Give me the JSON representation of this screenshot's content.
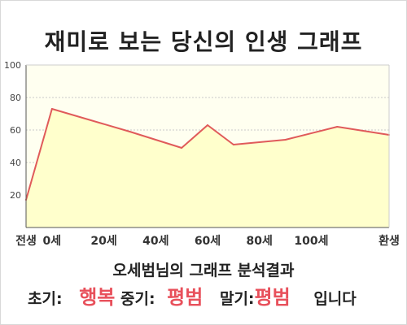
{
  "title": "재미로 보는 당신의 인생 그래프",
  "chart_data": {
    "type": "area",
    "x": [
      -10,
      0,
      30,
      50,
      60,
      70,
      90,
      110,
      130
    ],
    "y": [
      17,
      73,
      59,
      49,
      63,
      51,
      54,
      62,
      57
    ],
    "xlim": [
      -10,
      130
    ],
    "ylim": [
      0,
      100
    ],
    "y_ticks": [
      20,
      40,
      60,
      80,
      100
    ],
    "x_tick_labels": [
      "전생",
      "0세",
      "20세",
      "40세",
      "60세",
      "80세",
      "100세",
      "환생"
    ],
    "x_tick_positions": [
      -10,
      0,
      20,
      40,
      60,
      80,
      100,
      130
    ],
    "grid": true,
    "colors": {
      "line": "#e05a5a",
      "fill": "#ffffcc",
      "plot_bg": "#fffff0",
      "grid": "#c8c8c8"
    }
  },
  "result": {
    "title": "오세범님의 그래프 분석결과",
    "early_label": "초기:",
    "early_value": "행복",
    "mid_label": "중기:",
    "mid_value": "평범",
    "late_label": "말기:",
    "late_value": "평범",
    "suffix": "입니다"
  }
}
